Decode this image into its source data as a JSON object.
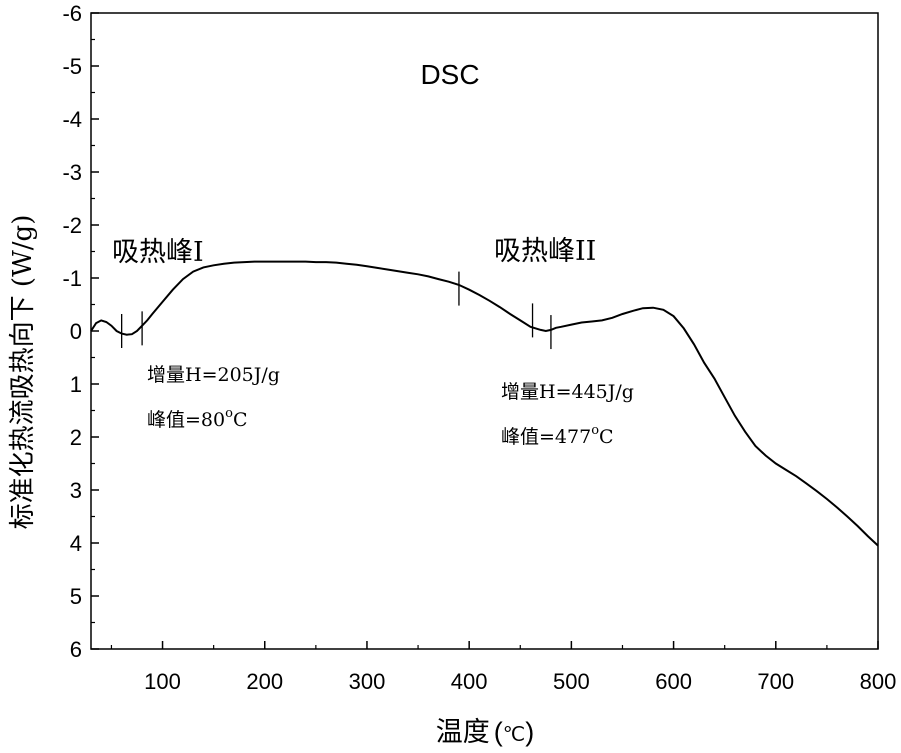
{
  "chart_data": {
    "type": "line",
    "title": "DSC",
    "xlabel": "温度 (℃)",
    "xlabel_main": "温度",
    "xlabel_unit_open": "(",
    "xlabel_unit": "℃",
    "xlabel_unit_close": ")",
    "ylabel": "标准化热流吸热向下 (W/g)",
    "xlim": [
      30,
      800
    ],
    "ylim": [
      6,
      -6
    ],
    "y_inverted": true,
    "x_ticks": [
      100,
      200,
      300,
      400,
      500,
      600,
      700,
      800
    ],
    "x_tick_labels": [
      "100",
      "200",
      "300",
      "400",
      "500",
      "600",
      "700",
      "800"
    ],
    "y_ticks": [
      -6,
      -5,
      -4,
      -3,
      -2,
      -1,
      0,
      1,
      2,
      3,
      4,
      5,
      6
    ],
    "y_tick_labels": [
      "-6",
      "-5",
      "-4",
      "-3",
      "-2",
      "-1",
      "0",
      "1",
      "2",
      "3",
      "4",
      "5",
      "6"
    ],
    "series": [
      {
        "name": "DSC",
        "x": [
          30,
          35,
          40,
          45,
          50,
          55,
          60,
          65,
          70,
          75,
          80,
          85,
          90,
          100,
          110,
          120,
          130,
          140,
          150,
          160,
          170,
          180,
          190,
          200,
          210,
          220,
          230,
          240,
          250,
          260,
          270,
          280,
          290,
          300,
          310,
          320,
          330,
          340,
          350,
          360,
          370,
          380,
          390,
          400,
          410,
          420,
          430,
          440,
          450,
          460,
          470,
          475,
          480,
          485,
          490,
          500,
          510,
          520,
          530,
          540,
          550,
          560,
          570,
          580,
          590,
          600,
          610,
          620,
          630,
          640,
          650,
          660,
          670,
          680,
          690,
          700,
          710,
          720,
          730,
          740,
          750,
          760,
          770,
          780,
          790,
          800
        ],
        "y": [
          0.0,
          -0.15,
          -0.2,
          -0.17,
          -0.1,
          0.0,
          0.05,
          0.07,
          0.06,
          0.0,
          -0.1,
          -0.2,
          -0.32,
          -0.55,
          -0.78,
          -0.98,
          -1.12,
          -1.2,
          -1.24,
          -1.27,
          -1.29,
          -1.3,
          -1.31,
          -1.31,
          -1.31,
          -1.31,
          -1.31,
          -1.31,
          -1.3,
          -1.3,
          -1.29,
          -1.27,
          -1.25,
          -1.22,
          -1.19,
          -1.16,
          -1.13,
          -1.1,
          -1.07,
          -1.03,
          -0.98,
          -0.93,
          -0.87,
          -0.78,
          -0.68,
          -0.57,
          -0.45,
          -0.32,
          -0.2,
          -0.08,
          -0.02,
          0.0,
          -0.02,
          -0.06,
          -0.08,
          -0.12,
          -0.16,
          -0.18,
          -0.2,
          -0.25,
          -0.32,
          -0.38,
          -0.43,
          -0.44,
          -0.4,
          -0.28,
          -0.05,
          0.25,
          0.6,
          0.9,
          1.25,
          1.6,
          1.9,
          2.17,
          2.35,
          2.5,
          2.62,
          2.74,
          2.88,
          3.02,
          3.17,
          3.33,
          3.5,
          3.68,
          3.87,
          4.05
        ]
      }
    ],
    "peak_markers": [
      {
        "x": 60,
        "y": 0.0
      },
      {
        "x": 80,
        "y": -0.05
      },
      {
        "x": 390,
        "y": -0.8
      },
      {
        "x": 462,
        "y": -0.2
      },
      {
        "x": 480,
        "y": 0.02
      }
    ],
    "annotations": [
      {
        "label": "吸热峰I"
      },
      {
        "label": "增量H=205J/g"
      },
      {
        "label": "峰值=80",
        "superscript": "o",
        "suffix": "C"
      },
      {
        "label": "吸热峰II"
      },
      {
        "label": "增量H=445J/g"
      },
      {
        "label": "峰值=477",
        "superscript": "o",
        "suffix": "C"
      }
    ]
  }
}
